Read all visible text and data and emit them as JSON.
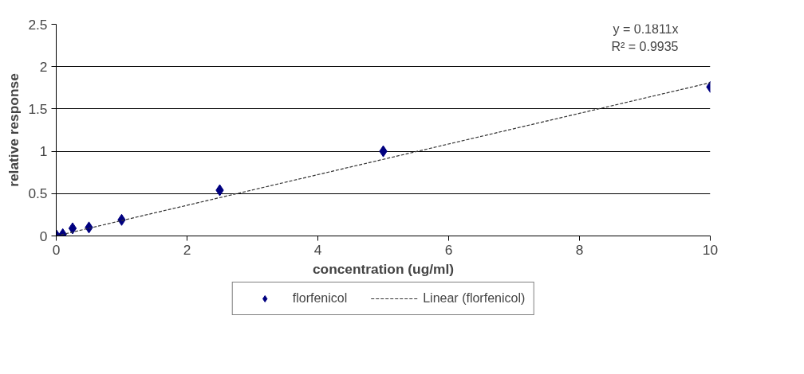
{
  "chart_data": {
    "type": "scatter",
    "xlabel": "concentration (ug/ml)",
    "ylabel": "relative response",
    "annotations": [
      "y = 0.1811x",
      "R² = 0.9935"
    ],
    "series": [
      {
        "name": "florfenicol",
        "color": "#000080",
        "marker": "diamond",
        "x": [
          0,
          0.1,
          0.25,
          0.5,
          1,
          2.5,
          5,
          10
        ],
        "values": [
          0.01,
          0.02,
          0.09,
          0.1,
          0.19,
          0.54,
          1.0,
          1.76
        ]
      },
      {
        "name": "Linear (florfenicol)",
        "type": "line",
        "color": "#333333",
        "line_style": "dashed",
        "marker": "none",
        "x": [
          0,
          10
        ],
        "values": [
          0,
          1.81
        ]
      }
    ],
    "xlim": [
      0,
      10
    ],
    "xticks": [
      0,
      2,
      4,
      6,
      8,
      10
    ],
    "ylim": [
      0,
      2.5
    ],
    "yticks": [
      0,
      0.5,
      1,
      1.5,
      2,
      2.5
    ],
    "grid": "y",
    "legend": "bottom"
  }
}
